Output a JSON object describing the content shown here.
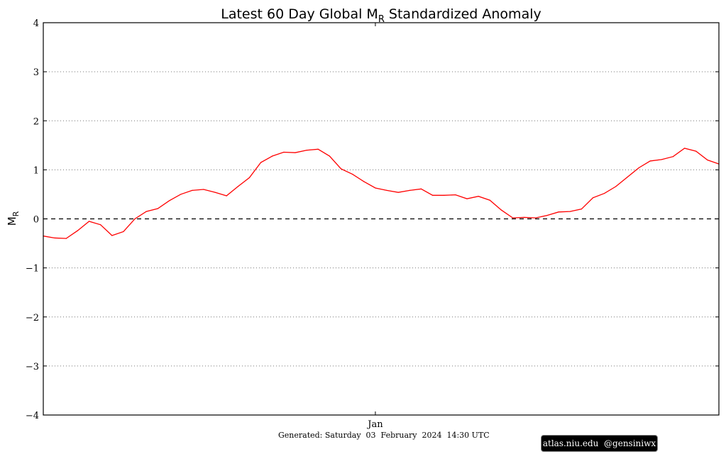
{
  "chart_data": {
    "type": "line",
    "title": "Latest 60 Day Global M",
    "title_subscript": "R",
    "title_suffix": " Standardized Anomaly",
    "ylabel": "M",
    "ylabel_subscript": "R",
    "xlabel": "",
    "ylim": [
      -4,
      4
    ],
    "yticks": [
      -4,
      -3,
      -2,
      -1,
      0,
      1,
      2,
      3,
      4
    ],
    "ytick_labels": [
      "−4",
      "−3",
      "−2",
      "−1",
      "0",
      "1",
      "2",
      "3",
      "4"
    ],
    "xticks": [
      {
        "index": 29,
        "label": "Jan"
      }
    ],
    "grid": "dotted horizontal",
    "zero_line": "dashed",
    "series": [
      {
        "name": "Global MR anomaly",
        "color": "#ff0000",
        "values": [
          -0.35,
          -0.39,
          -0.4,
          -0.24,
          -0.05,
          -0.12,
          -0.34,
          -0.26,
          0.0,
          0.15,
          0.21,
          0.37,
          0.5,
          0.58,
          0.6,
          0.54,
          0.47,
          0.66,
          0.84,
          1.15,
          1.28,
          1.36,
          1.35,
          1.4,
          1.42,
          1.28,
          1.02,
          0.91,
          0.76,
          0.63,
          0.58,
          0.54,
          0.58,
          0.61,
          0.48,
          0.48,
          0.49,
          0.41,
          0.46,
          0.38,
          0.18,
          0.02,
          0.03,
          0.02,
          0.07,
          0.14,
          0.15,
          0.2,
          0.43,
          0.52,
          0.66,
          0.85,
          1.04,
          1.18,
          1.21,
          1.27,
          1.44,
          1.38,
          1.2,
          1.12
        ]
      }
    ]
  },
  "footer": {
    "generated": "Generated: Saturday  03  February  2024  14:30 UTC",
    "watermark": "atlas.niu.edu  @gensiniwx"
  }
}
